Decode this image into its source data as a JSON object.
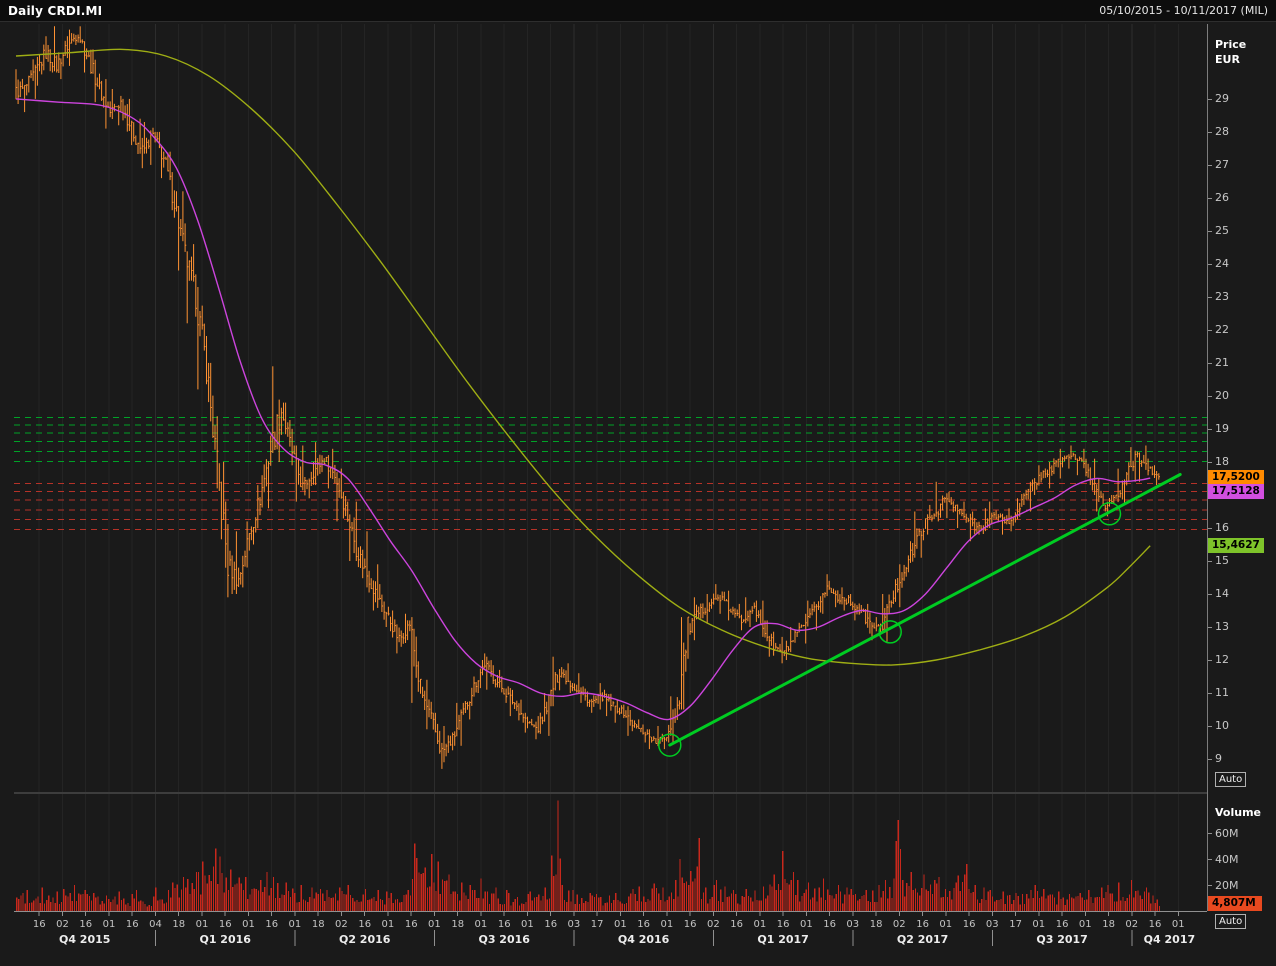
{
  "header": {
    "title": "Daily CRDI.MI",
    "date_range": "05/10/2015 - 10/11/2017 (MIL)"
  },
  "price_axis": {
    "label_line1": "Price",
    "label_line2": "EUR",
    "ticks": [
      29,
      28,
      27,
      26,
      25,
      24,
      23,
      22,
      21,
      20,
      19,
      18,
      16,
      15,
      14,
      13,
      12,
      11,
      10,
      9
    ],
    "badges": [
      {
        "text": "17,5200",
        "value": 17.52,
        "color": "#ff8a00"
      },
      {
        "text": "17,5128",
        "value": 17.5128,
        "color": "#d24fe0"
      },
      {
        "text": "15,4627",
        "value": 15.4627,
        "color": "#7ec32a"
      }
    ],
    "auto_label": "Auto"
  },
  "volume_axis": {
    "title": "Volume",
    "ticks": [
      {
        "label": "60M",
        "value": 60
      },
      {
        "label": "40M",
        "value": 40
      },
      {
        "label": "20M",
        "value": 20
      }
    ],
    "badge": {
      "text": "4,807M",
      "color": "#e8491f"
    },
    "auto_label": "Auto"
  },
  "x_axis": {
    "day_ticks": [
      "16",
      "02",
      "16",
      "01",
      "16",
      "04",
      "18",
      "01",
      "16",
      "01",
      "16",
      "01",
      "18",
      "02",
      "16",
      "01",
      "16",
      "01",
      "18",
      "01",
      "16",
      "01",
      "16",
      "03",
      "17",
      "01",
      "16",
      "01",
      "16",
      "02",
      "16",
      "01",
      "16",
      "01",
      "16",
      "03",
      "18",
      "02",
      "16",
      "01",
      "16",
      "03",
      "17",
      "01",
      "16",
      "01",
      "18",
      "02",
      "16",
      "01"
    ],
    "quarters": [
      "Q4 2015",
      "Q1 2016",
      "Q2 2016",
      "Q3 2016",
      "Q4 2016",
      "Q1 2017",
      "Q2 2017",
      "Q3 2017",
      "Q4 2017"
    ]
  },
  "chart_data": {
    "type": "candlestick",
    "subtype": "daily OHLC bars with volume, sampled weekly from the chart",
    "symbol": "CRDI.MI",
    "price_unit": "EUR",
    "volume_unit": "millions of shares",
    "ylim": [
      8.0,
      31.27
    ],
    "volume_ylim": [
      0,
      90
    ],
    "colors": {
      "bars": "#ff9233",
      "volume": "#c8281c",
      "fast_ma": "#cc44dd",
      "slow_ma": "#9fae14",
      "trendline": "#00cc22",
      "resistance": "#00a227",
      "support": "#b53228",
      "grid": "#242424"
    },
    "weeks_ohlcv": [
      [
        29.2,
        29.9,
        28.6,
        29.3,
        14
      ],
      [
        29.3,
        30.2,
        29.0,
        29.8,
        16
      ],
      [
        29.8,
        30.9,
        29.4,
        30.4,
        18
      ],
      [
        30.4,
        31.2,
        29.8,
        30.0,
        15
      ],
      [
        30.0,
        30.9,
        29.6,
        30.6,
        17
      ],
      [
        30.6,
        31.1,
        30.0,
        31.0,
        20
      ],
      [
        31.0,
        31.2,
        29.8,
        30.2,
        16
      ],
      [
        30.2,
        30.5,
        28.9,
        29.3,
        14
      ],
      [
        29.3,
        29.6,
        28.1,
        28.6,
        12
      ],
      [
        28.6,
        29.3,
        28.2,
        28.9,
        15
      ],
      [
        28.9,
        29.0,
        27.6,
        28.1,
        13
      ],
      [
        28.1,
        28.4,
        26.9,
        27.4,
        16
      ],
      [
        27.4,
        28.3,
        27.0,
        27.9,
        11
      ],
      [
        27.9,
        28.0,
        26.6,
        27.2,
        18
      ],
      [
        27.2,
        27.4,
        25.4,
        25.9,
        22
      ],
      [
        25.9,
        26.2,
        23.8,
        24.3,
        26
      ],
      [
        24.3,
        24.6,
        22.2,
        23.0,
        30
      ],
      [
        23.0,
        23.3,
        20.2,
        20.9,
        38
      ],
      [
        20.9,
        21.0,
        17.2,
        17.8,
        48
      ],
      [
        17.8,
        18.0,
        13.9,
        14.9,
        42
      ],
      [
        14.9,
        15.9,
        14.0,
        14.4,
        32
      ],
      [
        14.4,
        16.2,
        14.2,
        15.8,
        26
      ],
      [
        15.8,
        17.3,
        15.5,
        16.9,
        24
      ],
      [
        16.9,
        18.8,
        16.6,
        18.4,
        30
      ],
      [
        18.4,
        20.9,
        18.0,
        19.6,
        26
      ],
      [
        19.6,
        19.8,
        17.9,
        18.3,
        22
      ],
      [
        18.3,
        18.5,
        16.8,
        17.2,
        20
      ],
      [
        17.2,
        18.0,
        16.9,
        17.7,
        18
      ],
      [
        17.7,
        18.6,
        17.3,
        18.1,
        17
      ],
      [
        18.1,
        18.4,
        17.2,
        17.6,
        16
      ],
      [
        17.6,
        17.8,
        16.2,
        16.6,
        18
      ],
      [
        16.6,
        16.8,
        15.0,
        15.4,
        20
      ],
      [
        15.4,
        15.9,
        14.2,
        14.6,
        17
      ],
      [
        14.6,
        14.9,
        13.5,
        13.9,
        16
      ],
      [
        13.9,
        14.3,
        13.0,
        13.3,
        15
      ],
      [
        13.3,
        13.5,
        12.2,
        12.6,
        14
      ],
      [
        12.6,
        13.4,
        12.4,
        13.1,
        16
      ],
      [
        13.1,
        13.3,
        10.7,
        11.1,
        52
      ],
      [
        11.1,
        11.4,
        9.9,
        10.2,
        44
      ],
      [
        10.2,
        10.4,
        8.7,
        9.2,
        38
      ],
      [
        9.2,
        10.0,
        8.9,
        9.6,
        28
      ],
      [
        9.6,
        10.7,
        9.4,
        10.4,
        22
      ],
      [
        10.4,
        11.5,
        10.2,
        11.2,
        20
      ],
      [
        11.2,
        12.2,
        11.0,
        11.9,
        25
      ],
      [
        11.9,
        12.1,
        11.1,
        11.4,
        18
      ],
      [
        11.4,
        11.7,
        10.7,
        11.0,
        16
      ],
      [
        11.0,
        11.2,
        10.3,
        10.6,
        14
      ],
      [
        10.6,
        10.8,
        9.8,
        10.1,
        13
      ],
      [
        10.1,
        10.3,
        9.6,
        9.9,
        15
      ],
      [
        9.9,
        11.0,
        9.7,
        10.8,
        18
      ],
      [
        10.8,
        12.1,
        10.6,
        11.7,
        85
      ],
      [
        11.7,
        11.9,
        11.0,
        11.3,
        20
      ],
      [
        11.3,
        11.6,
        10.7,
        11.0,
        16
      ],
      [
        11.0,
        11.2,
        10.4,
        10.7,
        14
      ],
      [
        10.7,
        11.3,
        10.5,
        10.9,
        13
      ],
      [
        10.9,
        11.1,
        10.3,
        10.6,
        12
      ],
      [
        10.6,
        10.8,
        10.1,
        10.4,
        14
      ],
      [
        10.4,
        10.6,
        9.7,
        10.0,
        17
      ],
      [
        10.0,
        10.2,
        9.5,
        9.8,
        19
      ],
      [
        9.8,
        9.9,
        9.3,
        9.5,
        21
      ],
      [
        9.5,
        10.0,
        9.3,
        9.7,
        18
      ],
      [
        9.7,
        10.9,
        9.5,
        10.6,
        24
      ],
      [
        10.6,
        13.3,
        10.5,
        12.9,
        40
      ],
      [
        12.9,
        13.9,
        12.6,
        13.4,
        56
      ],
      [
        13.4,
        14.0,
        13.1,
        13.7,
        18
      ],
      [
        13.7,
        14.3,
        13.4,
        13.9,
        24
      ],
      [
        13.9,
        14.1,
        13.2,
        13.5,
        19
      ],
      [
        13.5,
        13.7,
        12.9,
        13.2,
        16
      ],
      [
        13.2,
        13.9,
        13.0,
        13.6,
        17
      ],
      [
        13.6,
        13.8,
        12.7,
        13.0,
        19
      ],
      [
        13.0,
        13.2,
        12.1,
        12.4,
        28
      ],
      [
        12.4,
        12.7,
        11.9,
        12.2,
        46
      ],
      [
        12.2,
        13.0,
        12.0,
        12.7,
        30
      ],
      [
        12.7,
        13.4,
        12.5,
        13.1,
        24
      ],
      [
        13.1,
        13.8,
        12.9,
        13.6,
        22
      ],
      [
        13.6,
        14.6,
        13.4,
        14.2,
        25
      ],
      [
        14.2,
        14.4,
        13.6,
        13.9,
        20
      ],
      [
        13.9,
        14.2,
        13.5,
        13.8,
        18
      ],
      [
        13.8,
        14.0,
        13.2,
        13.5,
        17
      ],
      [
        13.5,
        13.7,
        12.8,
        13.1,
        16
      ],
      [
        13.1,
        13.3,
        12.6,
        12.9,
        20
      ],
      [
        12.9,
        14.0,
        12.55,
        13.8,
        24
      ],
      [
        13.8,
        14.9,
        13.6,
        14.6,
        70
      ],
      [
        14.6,
        15.6,
        14.4,
        15.3,
        30
      ],
      [
        15.3,
        16.5,
        15.1,
        16.1,
        28
      ],
      [
        16.1,
        16.7,
        15.8,
        16.4,
        24
      ],
      [
        16.4,
        17.4,
        16.2,
        16.9,
        26
      ],
      [
        16.9,
        17.1,
        16.3,
        16.6,
        22
      ],
      [
        16.6,
        16.8,
        16.0,
        16.3,
        36
      ],
      [
        16.3,
        16.5,
        15.6,
        16.0,
        20
      ],
      [
        16.0,
        16.6,
        15.8,
        16.2,
        18
      ],
      [
        16.2,
        16.8,
        16.0,
        16.4,
        16
      ],
      [
        16.4,
        16.6,
        15.8,
        16.1,
        15
      ],
      [
        16.1,
        16.9,
        15.9,
        16.7,
        14
      ],
      [
        16.7,
        17.4,
        16.5,
        17.2,
        16
      ],
      [
        17.2,
        17.9,
        17.0,
        17.6,
        20
      ],
      [
        17.6,
        18.0,
        17.2,
        17.8,
        17
      ],
      [
        17.8,
        18.4,
        17.5,
        18.1,
        15
      ],
      [
        18.1,
        18.5,
        17.8,
        18.2,
        13
      ],
      [
        18.2,
        18.4,
        17.6,
        17.9,
        14
      ],
      [
        17.9,
        18.1,
        17.0,
        17.3,
        16
      ],
      [
        17.3,
        17.5,
        16.5,
        16.7,
        18
      ],
      [
        16.7,
        17.0,
        16.35,
        16.9,
        20
      ],
      [
        16.9,
        17.8,
        16.7,
        17.6,
        22
      ],
      [
        17.6,
        18.45,
        17.4,
        18.2,
        24
      ],
      [
        18.2,
        18.5,
        17.4,
        17.8,
        18
      ],
      [
        17.8,
        17.9,
        17.3,
        17.52,
        12
      ]
    ],
    "moving_averages": [
      {
        "name": "fast_ma_magenta",
        "last_value": 17.5128,
        "points": [
          [
            0,
            29.0
          ],
          [
            4,
            28.9
          ],
          [
            8,
            28.8
          ],
          [
            11,
            28.4
          ],
          [
            13,
            27.8
          ],
          [
            15,
            26.9
          ],
          [
            17,
            25.3
          ],
          [
            19,
            23.2
          ],
          [
            21,
            21.0
          ],
          [
            23,
            19.3
          ],
          [
            25,
            18.4
          ],
          [
            27,
            18.0
          ],
          [
            29,
            17.9
          ],
          [
            31,
            17.5
          ],
          [
            33,
            16.6
          ],
          [
            35,
            15.6
          ],
          [
            37,
            14.7
          ],
          [
            39,
            13.6
          ],
          [
            41,
            12.6
          ],
          [
            43,
            11.9
          ],
          [
            45,
            11.5
          ],
          [
            47,
            11.3
          ],
          [
            49,
            11.0
          ],
          [
            51,
            10.9
          ],
          [
            53,
            11.0
          ],
          [
            55,
            10.9
          ],
          [
            57,
            10.7
          ],
          [
            59,
            10.4
          ],
          [
            61,
            10.2
          ],
          [
            63,
            10.6
          ],
          [
            65,
            11.4
          ],
          [
            67,
            12.3
          ],
          [
            69,
            13.0
          ],
          [
            71,
            13.1
          ],
          [
            73,
            12.9
          ],
          [
            75,
            13.0
          ],
          [
            77,
            13.3
          ],
          [
            79,
            13.5
          ],
          [
            81,
            13.4
          ],
          [
            83,
            13.5
          ],
          [
            85,
            14.0
          ],
          [
            87,
            14.8
          ],
          [
            89,
            15.6
          ],
          [
            91,
            16.1
          ],
          [
            93,
            16.3
          ],
          [
            95,
            16.6
          ],
          [
            97,
            16.9
          ],
          [
            99,
            17.3
          ],
          [
            101,
            17.5
          ],
          [
            103,
            17.4
          ],
          [
            105,
            17.45
          ],
          [
            106,
            17.51
          ]
        ]
      },
      {
        "name": "slow_ma_olive",
        "last_value": 15.4627,
        "points": [
          [
            0,
            30.3
          ],
          [
            5,
            30.4
          ],
          [
            10,
            30.5
          ],
          [
            14,
            30.3
          ],
          [
            18,
            29.7
          ],
          [
            22,
            28.7
          ],
          [
            26,
            27.4
          ],
          [
            30,
            25.8
          ],
          [
            34,
            24.1
          ],
          [
            38,
            22.3
          ],
          [
            42,
            20.5
          ],
          [
            46,
            18.8
          ],
          [
            50,
            17.2
          ],
          [
            54,
            15.8
          ],
          [
            58,
            14.6
          ],
          [
            62,
            13.6
          ],
          [
            66,
            12.9
          ],
          [
            70,
            12.4
          ],
          [
            74,
            12.05
          ],
          [
            78,
            11.9
          ],
          [
            82,
            11.85
          ],
          [
            86,
            12.0
          ],
          [
            90,
            12.3
          ],
          [
            94,
            12.7
          ],
          [
            98,
            13.3
          ],
          [
            102,
            14.2
          ],
          [
            104,
            14.8
          ],
          [
            106,
            15.46
          ]
        ]
      }
    ],
    "resistance_levels_green": [
      19.35,
      19.12,
      18.88,
      18.62,
      18.32,
      18.02
    ],
    "support_levels_red": [
      17.35,
      17.1,
      16.85,
      16.55,
      16.25,
      15.95
    ],
    "trendline": {
      "from": {
        "week": 61.1,
        "price": 9.42
      },
      "to": {
        "week": 108.8,
        "price": 17.62
      }
    },
    "touch_circles": [
      {
        "week": 61.1,
        "price": 9.42
      },
      {
        "week": 81.7,
        "price": 12.85
      },
      {
        "week": 102.2,
        "price": 16.43
      }
    ],
    "last_price": 17.52,
    "last_volume_label": "4,807M"
  }
}
